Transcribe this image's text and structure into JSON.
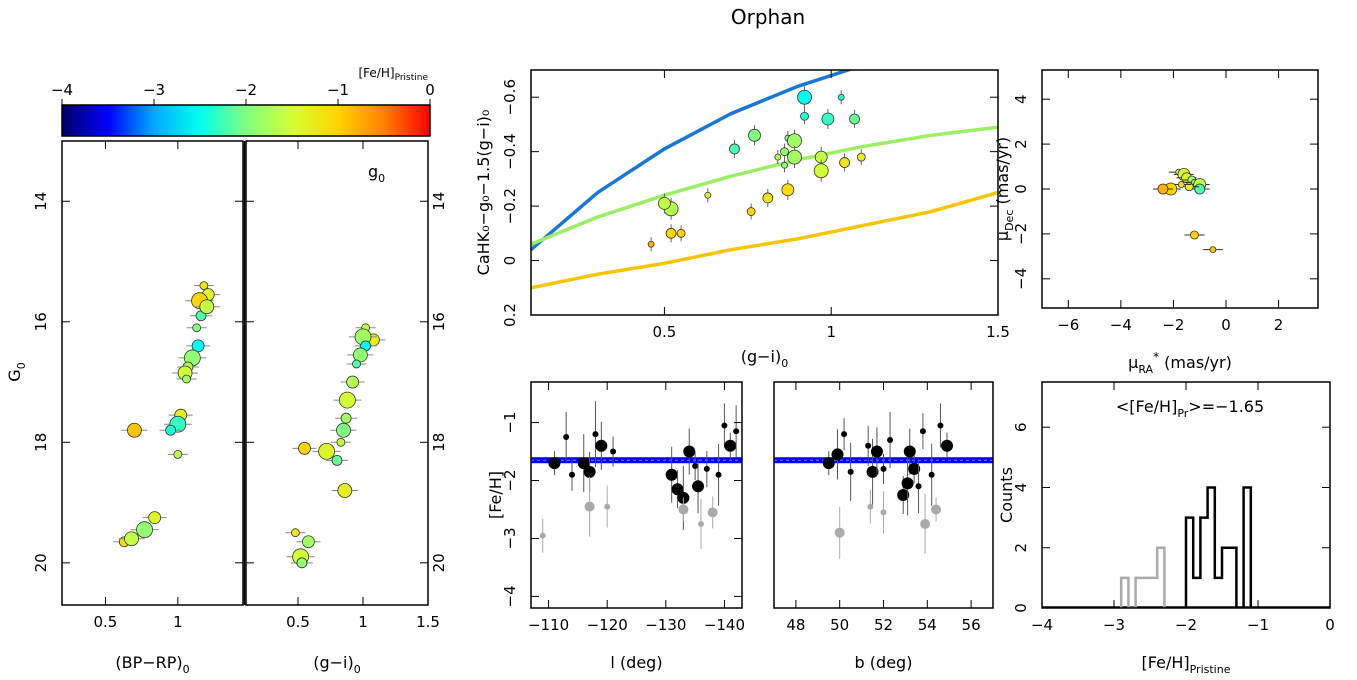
{
  "title": "Orphan",
  "colorbar": {
    "label_main": "[Fe/H]",
    "label_sub": "Pristine",
    "ticks": [
      "−4",
      "−3",
      "−2",
      "−1",
      "0"
    ],
    "colors": [
      "#000066",
      "#0000ff",
      "#00aaff",
      "#00ffee",
      "#7fff7f",
      "#d4ff33",
      "#ffd400",
      "#ff8000",
      "#ff0000"
    ]
  },
  "chart_data": [
    {
      "id": "cmd_bprp",
      "type": "scatter",
      "xlabel": "(BP−RP)",
      "xlabel_sub": "0",
      "ylabel": "G",
      "ylabel_sub": "0",
      "xlim": [
        0.2,
        1.45
      ],
      "ylim": [
        20.7,
        13.0
      ],
      "xticks": [
        "0.5",
        "1"
      ],
      "xtick_values": [
        0.5,
        1.0
      ],
      "yticks": [
        "14",
        "16",
        "18",
        "20"
      ],
      "ytick_values": [
        14,
        16,
        18,
        20
      ],
      "points": [
        {
          "x": 1.18,
          "y": 15.4,
          "feh": -1.2
        },
        {
          "x": 1.21,
          "y": 15.55,
          "feh": -1.4
        },
        {
          "x": 1.15,
          "y": 15.65,
          "feh": -1.0
        },
        {
          "x": 1.16,
          "y": 15.9,
          "feh": -2.2
        },
        {
          "x": 1.2,
          "y": 15.75,
          "feh": -1.6
        },
        {
          "x": 1.13,
          "y": 16.1,
          "feh": -2.0
        },
        {
          "x": 1.14,
          "y": 16.4,
          "feh": -2.5
        },
        {
          "x": 1.1,
          "y": 16.6,
          "feh": -1.9
        },
        {
          "x": 1.07,
          "y": 16.75,
          "feh": -1.7
        },
        {
          "x": 1.05,
          "y": 16.85,
          "feh": -1.5
        },
        {
          "x": 1.06,
          "y": 16.95,
          "feh": -1.8
        },
        {
          "x": 1.02,
          "y": 17.55,
          "feh": -1.3
        },
        {
          "x": 1.0,
          "y": 17.7,
          "feh": -2.3
        },
        {
          "x": 0.95,
          "y": 17.8,
          "feh": -2.4
        },
        {
          "x": 0.7,
          "y": 17.8,
          "feh": -0.9
        },
        {
          "x": 1.0,
          "y": 18.2,
          "feh": -1.7
        },
        {
          "x": 0.84,
          "y": 19.25,
          "feh": -1.4
        },
        {
          "x": 0.77,
          "y": 19.45,
          "feh": -1.9
        },
        {
          "x": 0.63,
          "y": 19.65,
          "feh": -1.1
        },
        {
          "x": 0.68,
          "y": 19.6,
          "feh": -1.6
        }
      ]
    },
    {
      "id": "cmd_gi",
      "type": "scatter",
      "xlabel": "(g−i)",
      "xlabel_sub": "0",
      "annotation": "g",
      "annotation_sub": "0",
      "xlim": [
        0.1,
        1.5
      ],
      "ylim": [
        20.7,
        13.0
      ],
      "xticks": [
        "0.5",
        "1",
        "1.5"
      ],
      "xtick_values": [
        0.5,
        1.0,
        1.5
      ],
      "yticks": [
        "14",
        "16",
        "18",
        "20"
      ],
      "ytick_values": [
        14,
        16,
        18,
        20
      ],
      "points": [
        {
          "x": 1.02,
          "y": 16.1,
          "feh": -1.6
        },
        {
          "x": 1.08,
          "y": 16.3,
          "feh": -1.3
        },
        {
          "x": 1.0,
          "y": 16.25,
          "feh": -1.8
        },
        {
          "x": 1.02,
          "y": 16.4,
          "feh": -2.5
        },
        {
          "x": 0.98,
          "y": 16.55,
          "feh": -1.9
        },
        {
          "x": 0.95,
          "y": 16.7,
          "feh": -2.2
        },
        {
          "x": 0.92,
          "y": 17.0,
          "feh": -1.7
        },
        {
          "x": 0.88,
          "y": 17.3,
          "feh": -1.5
        },
        {
          "x": 0.87,
          "y": 17.6,
          "feh": -1.8
        },
        {
          "x": 0.85,
          "y": 17.8,
          "feh": -2.0
        },
        {
          "x": 0.83,
          "y": 18.0,
          "feh": -1.6
        },
        {
          "x": 0.55,
          "y": 18.1,
          "feh": -1.0
        },
        {
          "x": 0.72,
          "y": 18.15,
          "feh": -1.4
        },
        {
          "x": 0.8,
          "y": 18.3,
          "feh": -2.1
        },
        {
          "x": 0.86,
          "y": 18.8,
          "feh": -1.3
        },
        {
          "x": 0.48,
          "y": 19.5,
          "feh": -1.2
        },
        {
          "x": 0.58,
          "y": 19.65,
          "feh": -1.8
        },
        {
          "x": 0.52,
          "y": 19.9,
          "feh": -1.5
        },
        {
          "x": 0.53,
          "y": 20.0,
          "feh": -1.9
        }
      ]
    },
    {
      "id": "cahk",
      "type": "scatter",
      "xlabel": "(g−i)",
      "xlabel_sub": "0",
      "ylabel": "CaHK₀−g₀−1.5(g−i)₀",
      "xlim": [
        0.1,
        1.5
      ],
      "ylim": [
        0.2,
        -0.7
      ],
      "xticks": [
        "0.5",
        "1",
        "1.5"
      ],
      "xtick_values": [
        0.5,
        1.0,
        1.5
      ],
      "yticks": [
        "0.2",
        "0",
        "−0.2",
        "−0.4",
        "−0.6"
      ],
      "ytick_values": [
        0.2,
        0.0,
        -0.2,
        -0.4,
        -0.6
      ],
      "curves": [
        {
          "color": "#1878d8",
          "x": [
            0.1,
            0.3,
            0.5,
            0.7,
            0.9,
            1.1
          ],
          "y": [
            -0.04,
            -0.25,
            -0.41,
            -0.54,
            -0.64,
            -0.72
          ]
        },
        {
          "color": "#9af060",
          "x": [
            0.1,
            0.3,
            0.5,
            0.7,
            0.9,
            1.1,
            1.3,
            1.5
          ],
          "y": [
            -0.06,
            -0.16,
            -0.24,
            -0.31,
            -0.37,
            -0.42,
            -0.46,
            -0.49
          ]
        },
        {
          "color": "#f8c400",
          "x": [
            0.1,
            0.3,
            0.5,
            0.7,
            0.9,
            1.1,
            1.3,
            1.5
          ],
          "y": [
            0.1,
            0.05,
            0.01,
            -0.04,
            -0.08,
            -0.13,
            -0.18,
            -0.25
          ]
        }
      ],
      "points": [
        {
          "x": 1.03,
          "y": -0.6,
          "feh": -2.4
        },
        {
          "x": 0.92,
          "y": -0.6,
          "feh": -2.5
        },
        {
          "x": 0.99,
          "y": -0.52,
          "feh": -2.3
        },
        {
          "x": 1.07,
          "y": -0.52,
          "feh": -2.1
        },
        {
          "x": 0.92,
          "y": -0.53,
          "feh": -2.4
        },
        {
          "x": 0.87,
          "y": -0.45,
          "feh": -2.0
        },
        {
          "x": 0.89,
          "y": -0.44,
          "feh": -1.8
        },
        {
          "x": 0.77,
          "y": -0.46,
          "feh": -2.0
        },
        {
          "x": 0.71,
          "y": -0.41,
          "feh": -2.2
        },
        {
          "x": 0.86,
          "y": -0.4,
          "feh": -1.9
        },
        {
          "x": 0.84,
          "y": -0.38,
          "feh": -1.7
        },
        {
          "x": 0.89,
          "y": -0.38,
          "feh": -1.8
        },
        {
          "x": 0.97,
          "y": -0.38,
          "feh": -1.6
        },
        {
          "x": 1.04,
          "y": -0.36,
          "feh": -1.2
        },
        {
          "x": 1.09,
          "y": -0.38,
          "feh": -1.3
        },
        {
          "x": 0.86,
          "y": -0.35,
          "feh": -1.9
        },
        {
          "x": 0.97,
          "y": -0.33,
          "feh": -1.5
        },
        {
          "x": 0.87,
          "y": -0.26,
          "feh": -1.1
        },
        {
          "x": 0.81,
          "y": -0.23,
          "feh": -1.2
        },
        {
          "x": 0.76,
          "y": -0.18,
          "feh": -1.0
        },
        {
          "x": 0.63,
          "y": -0.24,
          "feh": -1.4
        },
        {
          "x": 0.52,
          "y": -0.19,
          "feh": -1.7
        },
        {
          "x": 0.5,
          "y": -0.21,
          "feh": -1.6
        },
        {
          "x": 0.52,
          "y": -0.1,
          "feh": -1.0
        },
        {
          "x": 0.55,
          "y": -0.1,
          "feh": -1.0
        },
        {
          "x": 0.46,
          "y": -0.06,
          "feh": -0.8
        }
      ]
    },
    {
      "id": "pm",
      "type": "scatter",
      "xlabel": "μ",
      "xlabel_sub": "RA",
      "xlabel_sup": "*",
      "xlabel_unit": " (mas/yr)",
      "ylabel": "μ",
      "ylabel_sub": "Dec",
      "ylabel_unit": " (mas/yr)",
      "xlim": [
        -7,
        3.5
      ],
      "ylim": [
        -5.3,
        5.3
      ],
      "xticks": [
        "−6",
        "−4",
        "−2",
        "0",
        "2"
      ],
      "xtick_values": [
        -6,
        -4,
        -2,
        0,
        2
      ],
      "yticks": [
        "−4",
        "−2",
        "0",
        "2",
        "4"
      ],
      "ytick_values": [
        -4,
        -2,
        0,
        2,
        4
      ],
      "points": [
        {
          "x": -1.8,
          "y": 0.75,
          "feh": -1.7
        },
        {
          "x": -1.6,
          "y": 0.65,
          "feh": -1.5
        },
        {
          "x": -1.5,
          "y": 0.5,
          "feh": -1.4
        },
        {
          "x": -1.3,
          "y": 0.4,
          "feh": -1.8
        },
        {
          "x": -1.2,
          "y": 0.3,
          "feh": -1.9
        },
        {
          "x": -1.0,
          "y": 0.2,
          "feh": -1.6
        },
        {
          "x": -1.0,
          "y": 0.0,
          "feh": -2.2
        },
        {
          "x": -1.4,
          "y": 0.1,
          "feh": -1.3
        },
        {
          "x": -1.7,
          "y": 0.2,
          "feh": -1.1
        },
        {
          "x": -2.1,
          "y": 0.0,
          "feh": -1.0
        },
        {
          "x": -2.4,
          "y": 0.0,
          "feh": -0.8
        },
        {
          "x": -1.2,
          "y": -2.05,
          "feh": -1.0
        },
        {
          "x": -0.5,
          "y": -2.7,
          "feh": -0.9
        }
      ]
    },
    {
      "id": "feh_l",
      "type": "scatter",
      "xlabel": "l (deg)",
      "ylabel": "[Fe/H]",
      "xlim": [
        -107,
        -143
      ],
      "ylim": [
        -4.2,
        -0.3
      ],
      "xticks": [
        "−110",
        "−120",
        "−130",
        "−140"
      ],
      "xtick_values": [
        -110,
        -120,
        -130,
        -140
      ],
      "yticks": [
        "−4",
        "−3",
        "−2",
        "−1"
      ],
      "ytick_values": [
        -4,
        -3,
        -2,
        -1
      ],
      "hline": -1.65,
      "points": [
        {
          "x": -111,
          "y": -1.7,
          "big": 1
        },
        {
          "x": -113,
          "y": -1.25,
          "big": 0
        },
        {
          "x": -114,
          "y": -1.9,
          "big": 0
        },
        {
          "x": -116,
          "y": -1.7,
          "big": 1
        },
        {
          "x": -117,
          "y": -1.85,
          "big": 1
        },
        {
          "x": -118,
          "y": -1.2,
          "big": 0
        },
        {
          "x": -119,
          "y": -1.4,
          "big": 1
        },
        {
          "x": -121,
          "y": -1.5,
          "big": 0
        },
        {
          "x": -131,
          "y": -1.9,
          "big": 1
        },
        {
          "x": -132,
          "y": -2.15,
          "big": 1
        },
        {
          "x": -133,
          "y": -2.3,
          "big": 1
        },
        {
          "x": -134,
          "y": -1.5,
          "big": 1
        },
        {
          "x": -135,
          "y": -1.75,
          "big": 0
        },
        {
          "x": -135.5,
          "y": -2.1,
          "big": 1
        },
        {
          "x": -137,
          "y": -1.8,
          "big": 0
        },
        {
          "x": -139,
          "y": -1.9,
          "big": 0
        },
        {
          "x": -140,
          "y": -1.05,
          "big": 0
        },
        {
          "x": -141,
          "y": -1.4,
          "big": 1
        },
        {
          "x": -142,
          "y": -1.15,
          "big": 0
        },
        {
          "x": -109,
          "y": -2.95,
          "gray": 1
        },
        {
          "x": -117,
          "y": -2.45,
          "gray": 1
        },
        {
          "x": -120,
          "y": -2.45,
          "gray": 1
        },
        {
          "x": -133,
          "y": -2.5,
          "gray": 1
        },
        {
          "x": -136,
          "y": -2.75,
          "gray": 1
        },
        {
          "x": -138,
          "y": -2.55,
          "gray": 1
        }
      ]
    },
    {
      "id": "feh_b",
      "type": "scatter",
      "xlabel": "b (deg)",
      "xlim": [
        47,
        57
      ],
      "ylim": [
        -4.2,
        -0.3
      ],
      "xticks": [
        "48",
        "50",
        "52",
        "54",
        "56"
      ],
      "xtick_values": [
        48,
        50,
        52,
        54,
        56
      ],
      "hline": -1.65,
      "points": [
        {
          "x": 49.5,
          "y": -1.7,
          "big": 1
        },
        {
          "x": 49.9,
          "y": -1.55,
          "big": 1
        },
        {
          "x": 50.2,
          "y": -1.2,
          "big": 0
        },
        {
          "x": 50.5,
          "y": -1.85,
          "big": 0
        },
        {
          "x": 51.3,
          "y": -1.4,
          "big": 0
        },
        {
          "x": 51.5,
          "y": -1.85,
          "big": 1
        },
        {
          "x": 51.7,
          "y": -1.5,
          "big": 1
        },
        {
          "x": 52.0,
          "y": -1.8,
          "big": 0
        },
        {
          "x": 52.3,
          "y": -1.3,
          "big": 0
        },
        {
          "x": 52.9,
          "y": -2.25,
          "big": 1
        },
        {
          "x": 53.1,
          "y": -2.05,
          "big": 1
        },
        {
          "x": 53.2,
          "y": -1.5,
          "big": 1
        },
        {
          "x": 53.4,
          "y": -1.8,
          "big": 1
        },
        {
          "x": 53.6,
          "y": -2.1,
          "big": 0
        },
        {
          "x": 53.8,
          "y": -1.15,
          "big": 0
        },
        {
          "x": 54.2,
          "y": -1.9,
          "big": 0
        },
        {
          "x": 54.6,
          "y": -1.05,
          "big": 0
        },
        {
          "x": 54.9,
          "y": -1.4,
          "big": 1
        },
        {
          "x": 50.0,
          "y": -2.9,
          "gray": 1
        },
        {
          "x": 51.4,
          "y": -2.45,
          "gray": 1
        },
        {
          "x": 53.9,
          "y": -2.75,
          "gray": 1
        },
        {
          "x": 52.0,
          "y": -2.55,
          "gray": 1
        },
        {
          "x": 54.4,
          "y": -2.5,
          "gray": 1
        }
      ]
    },
    {
      "id": "hist",
      "type": "histogram",
      "xlabel": "[Fe/H]",
      "xlabel_sub": "Pristine",
      "ylabel": "Counts",
      "annotation": "<[Fe/H]",
      "annotation_sub": "Pr",
      "annotation_tail": ">=−1.65",
      "xlim": [
        -4,
        0
      ],
      "ylim": [
        0,
        7.5
      ],
      "xticks": [
        "−4",
        "−3",
        "−2",
        "−1",
        "0"
      ],
      "xtick_values": [
        -4,
        -3,
        -2,
        -1,
        0
      ],
      "yticks": [
        "0",
        "2",
        "4",
        "6"
      ],
      "ytick_values": [
        0,
        2,
        4,
        6
      ],
      "bin_width": 0.1,
      "gray_bins": [
        {
          "x0": -2.9,
          "x1": -2.8,
          "n": 1
        },
        {
          "x0": -2.8,
          "x1": -2.7,
          "n": 0
        },
        {
          "x0": -2.7,
          "x1": -2.4,
          "n": 1
        },
        {
          "x0": -2.4,
          "x1": -2.3,
          "n": 2
        }
      ],
      "black_bins": [
        {
          "x0": -2.0,
          "x1": -1.9,
          "n": 3
        },
        {
          "x0": -1.9,
          "x1": -1.8,
          "n": 1
        },
        {
          "x0": -1.8,
          "x1": -1.7,
          "n": 3
        },
        {
          "x0": -1.7,
          "x1": -1.6,
          "n": 4
        },
        {
          "x0": -1.6,
          "x1": -1.5,
          "n": 1
        },
        {
          "x0": -1.5,
          "x1": -1.3,
          "n": 2
        },
        {
          "x0": -1.3,
          "x1": -1.2,
          "n": 0
        },
        {
          "x0": -1.2,
          "x1": -1.1,
          "n": 4
        }
      ]
    }
  ]
}
